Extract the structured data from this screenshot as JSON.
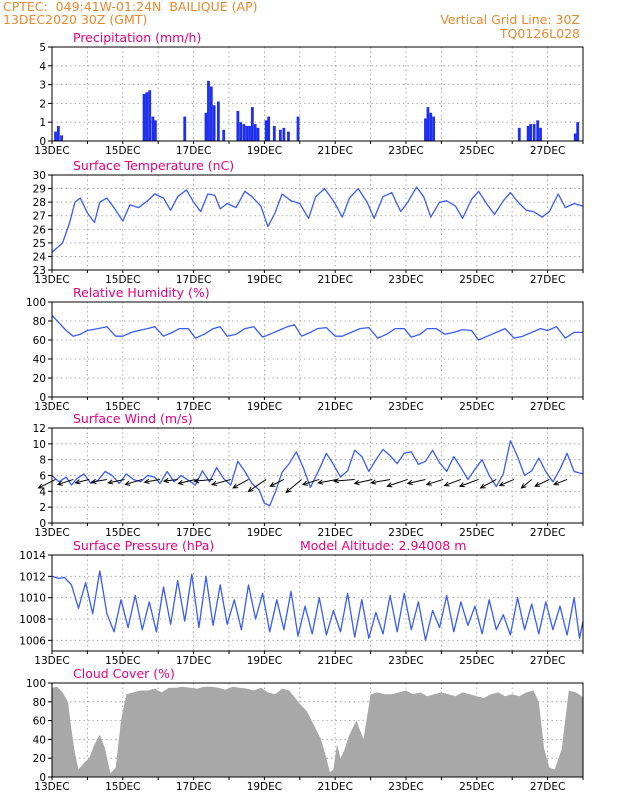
{
  "header": {
    "line1": "CPTEC:  049:41W-01:24N  BAILIQUE (AP)",
    "line2": "13DEC2020 30Z (GMT)",
    "grid_note": "Vertical Grid Line: 30Z",
    "run_id": "TQ0126L028"
  },
  "colors": {
    "series": "#3a5cf0",
    "title": "#e6007e",
    "header": "#e8892f",
    "cloud": "#a8a8a8",
    "precip": "#1f2fee"
  },
  "chart_data": [
    {
      "id": "precipitation",
      "type": "bar",
      "title": "Precipitation (mm/h)",
      "ylim": [
        0,
        5
      ],
      "yticks": [
        0,
        1,
        2,
        3,
        4,
        5
      ],
      "xlim_days": [
        13,
        28
      ],
      "xtick_labels": [
        "13DEC",
        "15DEC",
        "17DEC",
        "19DEC",
        "21DEC",
        "23DEC",
        "25DEC",
        "27DEC"
      ],
      "grid": true,
      "x_day": [
        13.1,
        13.18,
        13.27,
        15.6,
        15.68,
        15.76,
        15.85,
        15.92,
        16.75,
        17.35,
        17.42,
        17.5,
        17.58,
        17.7,
        17.85,
        18.25,
        18.33,
        18.42,
        18.5,
        18.58,
        18.66,
        18.74,
        18.82,
        19.05,
        19.12,
        19.28,
        19.45,
        19.55,
        19.68,
        19.95,
        23.55,
        23.62,
        23.7,
        23.78,
        26.2,
        26.45,
        26.52,
        26.62,
        26.72,
        26.8,
        27.78,
        27.85
      ],
      "values": [
        0.5,
        0.8,
        0.3,
        2.5,
        2.6,
        2.7,
        1.3,
        1.1,
        1.3,
        1.5,
        3.2,
        2.9,
        1.9,
        2.1,
        0.6,
        1.6,
        1.0,
        0.9,
        0.8,
        0.8,
        1.8,
        0.9,
        0.7,
        1.1,
        1.3,
        0.8,
        0.6,
        0.7,
        0.5,
        1.3,
        1.2,
        1.8,
        1.5,
        1.3,
        0.7,
        0.8,
        0.9,
        0.9,
        1.1,
        0.7,
        0.4,
        1.0
      ]
    },
    {
      "id": "temperature",
      "type": "line",
      "title": "Surface Temperature (nC)",
      "ylim": [
        23,
        30
      ],
      "yticks": [
        23,
        24,
        25,
        26,
        27,
        28,
        29,
        30
      ],
      "xlim_days": [
        13,
        28
      ],
      "grid": true,
      "x_day": [
        13.0,
        13.3,
        13.5,
        13.65,
        13.8,
        14.0,
        14.2,
        14.35,
        14.55,
        14.75,
        15.0,
        15.2,
        15.45,
        15.7,
        15.9,
        16.15,
        16.35,
        16.55,
        16.8,
        17.0,
        17.2,
        17.4,
        17.6,
        17.75,
        17.95,
        18.2,
        18.45,
        18.65,
        18.9,
        19.1,
        19.3,
        19.5,
        19.75,
        20.0,
        20.25,
        20.45,
        20.7,
        20.95,
        21.2,
        21.4,
        21.65,
        21.9,
        22.1,
        22.35,
        22.6,
        22.85,
        23.05,
        23.3,
        23.5,
        23.7,
        23.95,
        24.15,
        24.4,
        24.6,
        24.85,
        25.05,
        25.3,
        25.5,
        25.75,
        25.95,
        26.2,
        26.4,
        26.6,
        26.85,
        27.05,
        27.3,
        27.5,
        27.75,
        28.0
      ],
      "values": [
        24.3,
        25.0,
        26.5,
        28.0,
        28.3,
        27.2,
        26.5,
        28.0,
        28.3,
        27.6,
        26.6,
        27.8,
        27.6,
        28.1,
        28.6,
        28.3,
        27.4,
        28.4,
        28.9,
        28.0,
        27.3,
        28.6,
        28.5,
        27.5,
        27.9,
        27.6,
        28.8,
        28.4,
        27.7,
        26.2,
        27.2,
        28.6,
        28.1,
        27.9,
        26.8,
        28.4,
        29.0,
        28.1,
        26.9,
        28.3,
        29.0,
        28.0,
        26.8,
        28.4,
        28.7,
        27.3,
        28.0,
        29.1,
        28.4,
        26.9,
        28.0,
        28.1,
        27.7,
        26.8,
        28.2,
        28.8,
        27.8,
        27.1,
        28.1,
        28.7,
        27.9,
        27.4,
        27.3,
        26.9,
        27.3,
        28.6,
        27.6,
        27.9,
        27.7
      ]
    },
    {
      "id": "humidity",
      "type": "line",
      "title": "Relative Humidity (%)",
      "ylim": [
        0,
        100
      ],
      "yticks": [
        0,
        20,
        40,
        60,
        80,
        100
      ],
      "xlim_days": [
        13,
        28
      ],
      "grid": true,
      "x_day": [
        13.0,
        13.2,
        13.4,
        13.6,
        13.8,
        14.0,
        14.3,
        14.55,
        14.8,
        15.0,
        15.25,
        15.45,
        15.7,
        15.9,
        16.15,
        16.4,
        16.6,
        16.85,
        17.05,
        17.3,
        17.55,
        17.75,
        17.95,
        18.2,
        18.45,
        18.7,
        18.95,
        19.15,
        19.4,
        19.65,
        19.85,
        20.05,
        20.3,
        20.5,
        20.75,
        21.0,
        21.2,
        21.45,
        21.7,
        21.95,
        22.2,
        22.45,
        22.7,
        22.95,
        23.15,
        23.4,
        23.6,
        23.85,
        24.1,
        24.35,
        24.6,
        24.85,
        25.05,
        25.3,
        25.55,
        25.8,
        26.05,
        26.3,
        26.55,
        26.8,
        27.0,
        27.25,
        27.5,
        27.75,
        28.0
      ],
      "values": [
        86,
        78,
        70,
        64,
        66,
        70,
        72,
        74,
        64,
        64,
        68,
        70,
        72,
        74,
        64,
        68,
        72,
        72,
        62,
        66,
        72,
        74,
        64,
        66,
        72,
        74,
        63,
        66,
        70,
        74,
        76,
        64,
        68,
        72,
        73,
        64,
        64,
        68,
        72,
        73,
        62,
        66,
        72,
        72,
        63,
        66,
        72,
        72,
        66,
        68,
        71,
        70,
        60,
        64,
        68,
        72,
        62,
        64,
        68,
        72,
        70,
        74,
        62,
        68,
        68
      ]
    },
    {
      "id": "wind",
      "type": "line",
      "title": "Surface Wind (m/s)",
      "ylim": [
        0,
        12
      ],
      "yticks": [
        0,
        2,
        4,
        6,
        8,
        10,
        12
      ],
      "xlim_days": [
        13,
        28
      ],
      "grid": true,
      "x_day": [
        13.0,
        13.2,
        13.4,
        13.55,
        13.7,
        13.9,
        14.1,
        14.3,
        14.5,
        14.7,
        14.9,
        15.1,
        15.3,
        15.5,
        15.7,
        15.9,
        16.05,
        16.25,
        16.45,
        16.65,
        16.85,
        17.05,
        17.25,
        17.45,
        17.65,
        17.85,
        18.05,
        18.25,
        18.45,
        18.65,
        18.85,
        19.0,
        19.15,
        19.3,
        19.5,
        19.7,
        19.9,
        20.1,
        20.3,
        20.55,
        20.75,
        20.95,
        21.15,
        21.35,
        21.55,
        21.75,
        21.95,
        22.15,
        22.35,
        22.55,
        22.75,
        22.95,
        23.15,
        23.35,
        23.55,
        23.75,
        23.95,
        24.15,
        24.35,
        24.55,
        24.75,
        24.95,
        25.15,
        25.35,
        25.55,
        25.75,
        25.95,
        26.15,
        26.35,
        26.55,
        26.75,
        26.95,
        27.15,
        27.35,
        27.55,
        27.75,
        28.0
      ],
      "values": [
        6.0,
        5.2,
        5.8,
        4.8,
        5.6,
        6.2,
        5.0,
        5.4,
        6.5,
        6.0,
        5.0,
        6.2,
        5.5,
        5.2,
        6.0,
        5.8,
        5.0,
        6.5,
        5.2,
        6.0,
        5.4,
        4.8,
        6.6,
        5.2,
        7.0,
        5.6,
        4.8,
        7.8,
        6.5,
        5.0,
        4.2,
        2.5,
        2.2,
        3.8,
        6.4,
        7.5,
        9.0,
        7.0,
        4.5,
        6.8,
        8.8,
        7.4,
        5.8,
        6.6,
        9.2,
        8.4,
        6.5,
        8.0,
        9.3,
        8.5,
        7.5,
        8.8,
        9.0,
        7.4,
        7.8,
        9.2,
        7.6,
        6.5,
        8.4,
        7.0,
        5.5,
        6.8,
        8.0,
        6.0,
        4.6,
        6.2,
        10.4,
        8.4,
        6.0,
        6.6,
        8.2,
        6.5,
        5.2,
        6.8,
        8.8,
        6.5,
        6.2
      ],
      "arrows": {
        "x_day": [
          13.1,
          13.6,
          14.05,
          14.55,
          15.05,
          15.55,
          16.05,
          16.55,
          17.05,
          17.55,
          18.05,
          18.55,
          19.05,
          19.55,
          20.05,
          20.55,
          21.05,
          21.55,
          22.05,
          22.55,
          23.05,
          23.55,
          24.05,
          24.55,
          25.05,
          25.55,
          26.05,
          26.55,
          27.05,
          27.55
        ],
        "u": [
          -5.0,
          -4.5,
          -4.0,
          -4.5,
          -4.8,
          -5.0,
          -4.5,
          -4.0,
          -5.0,
          -5.5,
          -5.5,
          -4.5,
          -5.2,
          -4.0,
          -4.5,
          -4.8,
          -5.5,
          -6.0,
          -5.2,
          -5.5,
          -6.0,
          -5.2,
          -4.8,
          -4.8,
          -5.5,
          -4.6,
          -4.2,
          -3.0,
          -4.2,
          -3.8
        ],
        "v": [
          -2.5,
          -1.5,
          -1.0,
          -0.8,
          -1.0,
          -1.5,
          -0.8,
          -0.5,
          -1.2,
          -0.5,
          -1.5,
          -2.5,
          -3.5,
          -2.0,
          -3.8,
          -1.5,
          -1.0,
          -0.5,
          -1.2,
          -1.0,
          -2.0,
          -1.2,
          -1.5,
          -1.8,
          -2.0,
          -2.5,
          -1.8,
          -2.5,
          -2.0,
          -1.5
        ]
      }
    },
    {
      "id": "pressure",
      "type": "line",
      "title": "Surface Pressure (hPa)",
      "annotation": "Model Altitude: 2.94008 m",
      "ylim": [
        1005,
        1014
      ],
      "yticks": [
        1006,
        1008,
        1010,
        1012,
        1014
      ],
      "xlim_days": [
        13,
        28
      ],
      "grid": true,
      "x_day": [
        13.0,
        13.2,
        13.35,
        13.55,
        13.75,
        13.95,
        14.15,
        14.35,
        14.55,
        14.75,
        14.95,
        15.15,
        15.35,
        15.55,
        15.75,
        15.95,
        16.15,
        16.35,
        16.55,
        16.75,
        16.95,
        17.15,
        17.35,
        17.55,
        17.75,
        17.95,
        18.15,
        18.35,
        18.55,
        18.75,
        18.95,
        19.15,
        19.35,
        19.55,
        19.75,
        19.95,
        20.15,
        20.35,
        20.55,
        20.75,
        20.95,
        21.15,
        21.35,
        21.55,
        21.75,
        21.95,
        22.15,
        22.35,
        22.55,
        22.75,
        22.95,
        23.15,
        23.35,
        23.55,
        23.75,
        23.95,
        24.15,
        24.35,
        24.55,
        24.75,
        24.95,
        25.15,
        25.35,
        25.55,
        25.75,
        25.95,
        26.15,
        26.35,
        26.55,
        26.75,
        26.95,
        27.15,
        27.35,
        27.55,
        27.75,
        27.9,
        28.0
      ],
      "values": [
        1012.0,
        1011.8,
        1011.9,
        1011.2,
        1009.0,
        1011.4,
        1008.5,
        1012.5,
        1008.5,
        1006.8,
        1009.8,
        1007.2,
        1010.2,
        1007.0,
        1009.6,
        1006.8,
        1011.0,
        1007.5,
        1011.6,
        1007.8,
        1012.2,
        1007.2,
        1012.0,
        1007.4,
        1011.2,
        1007.5,
        1009.8,
        1007.0,
        1011.2,
        1008.0,
        1010.4,
        1006.8,
        1009.8,
        1007.0,
        1010.6,
        1006.4,
        1009.2,
        1006.6,
        1010.0,
        1006.5,
        1008.8,
        1006.8,
        1010.4,
        1006.3,
        1009.8,
        1006.2,
        1008.6,
        1006.6,
        1010.2,
        1006.8,
        1010.4,
        1007.0,
        1009.6,
        1006.0,
        1008.8,
        1007.2,
        1010.2,
        1006.8,
        1009.6,
        1007.4,
        1009.2,
        1006.6,
        1009.8,
        1007.0,
        1008.4,
        1006.5,
        1010.0,
        1007.0,
        1009.4,
        1006.6,
        1009.6,
        1007.0,
        1009.2,
        1006.5,
        1010.0,
        1006.2,
        1007.8
      ]
    },
    {
      "id": "cloud",
      "type": "area",
      "title": "Cloud Cover (%)",
      "ylim": [
        0,
        100
      ],
      "yticks": [
        0,
        20,
        40,
        60,
        80,
        100
      ],
      "xlim_days": [
        13,
        28
      ],
      "grid": true,
      "x_day": [
        13.0,
        13.15,
        13.3,
        13.45,
        13.55,
        13.65,
        13.75,
        13.9,
        14.05,
        14.2,
        14.35,
        14.5,
        14.65,
        14.8,
        14.95,
        15.1,
        15.3,
        15.5,
        15.7,
        15.9,
        16.1,
        16.3,
        16.5,
        16.7,
        16.9,
        17.1,
        17.3,
        17.5,
        17.7,
        17.9,
        18.1,
        18.3,
        18.5,
        18.7,
        18.9,
        19.1,
        19.3,
        19.5,
        19.7,
        19.85,
        20.0,
        20.2,
        20.4,
        20.6,
        20.75,
        20.85,
        20.95,
        21.05,
        21.15,
        21.25,
        21.4,
        21.6,
        21.8,
        22.0,
        22.2,
        22.4,
        22.6,
        22.8,
        23.0,
        23.2,
        23.4,
        23.6,
        23.8,
        24.0,
        24.2,
        24.4,
        24.6,
        24.8,
        25.0,
        25.2,
        25.4,
        25.6,
        25.8,
        26.0,
        26.2,
        26.4,
        26.6,
        26.75,
        26.9,
        27.05,
        27.2,
        27.4,
        27.6,
        27.8,
        28.0
      ],
      "values": [
        95,
        96,
        90,
        80,
        50,
        25,
        8,
        15,
        20,
        35,
        45,
        30,
        4,
        10,
        60,
        88,
        90,
        92,
        92,
        94,
        90,
        95,
        95,
        96,
        95,
        94,
        96,
        96,
        95,
        93,
        96,
        95,
        94,
        92,
        95,
        90,
        88,
        94,
        92,
        85,
        78,
        70,
        55,
        40,
        20,
        5,
        8,
        35,
        20,
        28,
        45,
        60,
        40,
        88,
        90,
        88,
        88,
        90,
        92,
        88,
        90,
        86,
        88,
        90,
        88,
        86,
        90,
        88,
        86,
        84,
        88,
        90,
        86,
        88,
        86,
        90,
        92,
        80,
        30,
        10,
        8,
        30,
        92,
        90,
        85
      ]
    }
  ]
}
